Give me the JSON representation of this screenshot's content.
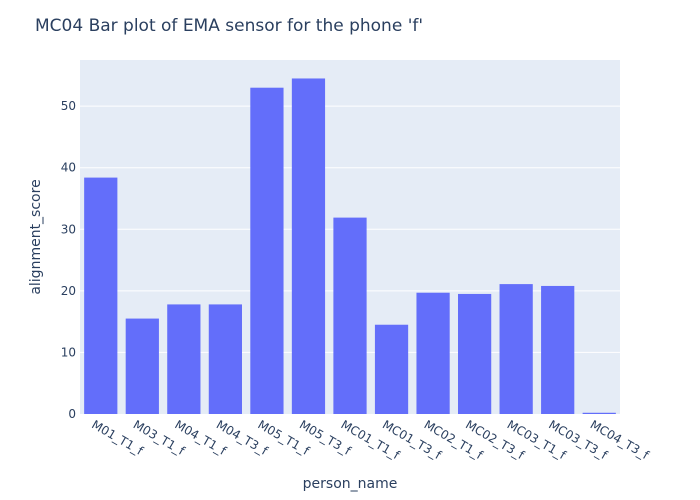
{
  "chart_data": {
    "type": "bar",
    "title": "MC04 Bar plot of EMA sensor for the phone 'f'",
    "xlabel": "person_name",
    "ylabel": "alignment_score",
    "categories": [
      "M01_T1_f",
      "M03_T1_f",
      "M04_T1_f",
      "M04_T3_f",
      "M05_T1_f",
      "M05_T3_f",
      "MC01_T1_f",
      "MC01_T3_f",
      "MC02_T1_f",
      "MC02_T3_f",
      "MC03_T1_f",
      "MC03_T3_f",
      "MC04_T3_f"
    ],
    "values": [
      38.4,
      15.5,
      17.8,
      17.8,
      53.0,
      54.5,
      31.9,
      14.5,
      19.7,
      19.5,
      21.1,
      20.8,
      0.2
    ],
    "ylim": [
      0,
      57.5
    ],
    "yticks": [
      0,
      10,
      20,
      30,
      40,
      50
    ],
    "grid": true,
    "colors": {
      "bar": "#636efa",
      "plot_bg": "#e5ecf6",
      "grid": "#ffffff",
      "text": "#2a3f5f"
    }
  }
}
